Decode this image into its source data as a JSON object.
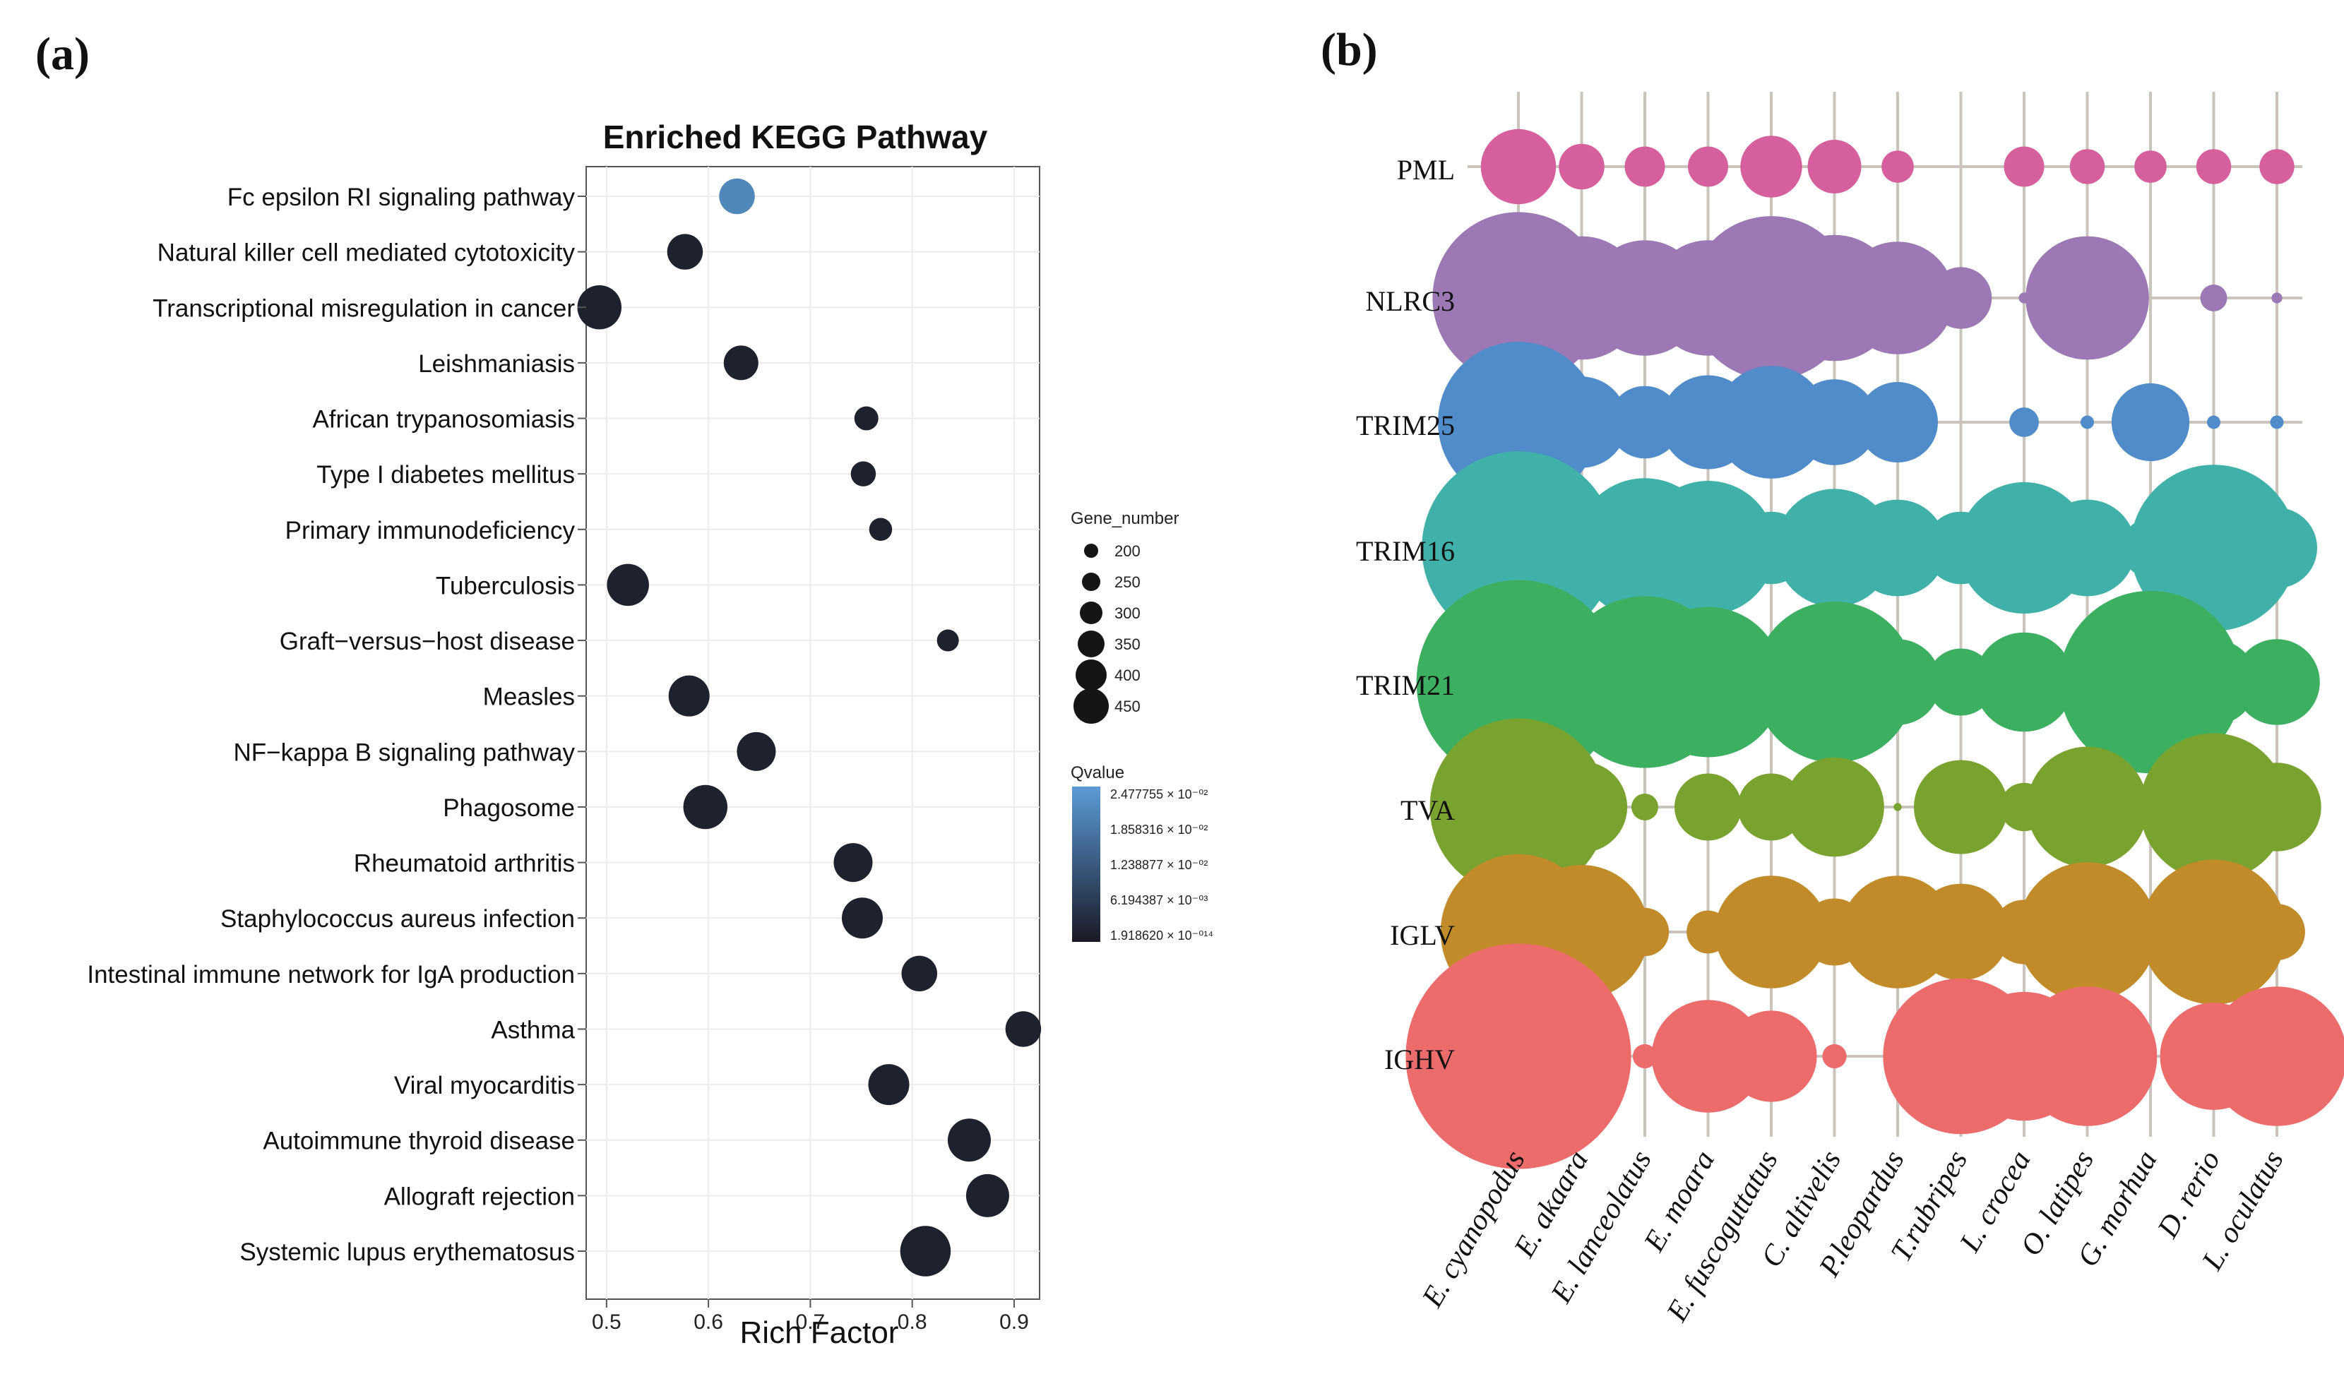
{
  "panel_a": {
    "label": "(a)",
    "chart_data": {
      "type": "scatter",
      "title": "Enriched KEGG Pathway",
      "xlabel": "Rich Factor",
      "ylabel": "",
      "xlim": [
        0.48,
        0.925
      ],
      "xticks": [
        0.5,
        0.6,
        0.7,
        0.8,
        0.9
      ],
      "xtick_labels": [
        "0.5",
        "0.6",
        "0.7",
        "0.8",
        "0.9"
      ],
      "categories": [
        "Fc epsilon RI signaling pathway",
        "Natural killer cell mediated cytotoxicity",
        "Transcriptional misregulation in cancer",
        "Leishmaniasis",
        "African trypanosomiasis",
        "Type I diabetes mellitus",
        "Primary immunodeficiency",
        "Tuberculosis",
        "Graft−versus−host disease",
        "Measles",
        "NF−kappa B signaling pathway",
        "Phagosome",
        "Rheumatoid arthritis",
        "Staphylococcus aureus infection",
        "Intestinal immune network for IgA production",
        "Asthma",
        "Viral myocarditis",
        "Autoimmune thyroid disease",
        "Allograft rejection",
        "Systemic lupus erythematosus"
      ],
      "rich_factor": [
        0.628,
        0.577,
        0.493,
        0.632,
        0.755,
        0.752,
        0.769,
        0.521,
        0.835,
        0.581,
        0.647,
        0.597,
        0.742,
        0.751,
        0.807,
        0.909,
        0.777,
        0.856,
        0.874,
        0.813
      ],
      "gene_number": [
        300,
        300,
        380,
        290,
        190,
        200,
        180,
        360,
        170,
        350,
        330,
        380,
        330,
        350,
        300,
        300,
        350,
        370,
        370,
        440
      ],
      "qvalue_relative": [
        1.0,
        0.05,
        0.05,
        0.05,
        0.05,
        0.05,
        0.05,
        0.05,
        0.05,
        0.05,
        0.05,
        0.05,
        0.05,
        0.05,
        0.05,
        0.05,
        0.05,
        0.05,
        0.05,
        0.05
      ],
      "grid": true,
      "legend_size": {
        "title": "Gene_number",
        "values": [
          200,
          250,
          300,
          350,
          400,
          450
        ],
        "labels": [
          "200",
          "250",
          "300",
          "350",
          "400",
          "450"
        ]
      },
      "legend_color": {
        "title": "Qvalue",
        "labels": [
          "2.477755 × 10⁻⁰²",
          "1.858316 × 10⁻⁰²",
          "1.238877 × 10⁻⁰²",
          "6.194387 × 10⁻⁰³",
          "1.918620 × 10⁻⁰¹⁴"
        ],
        "color_high": "#5b9bd5",
        "color_low": "#1a1a24"
      },
      "legend_placement": "right"
    }
  },
  "panel_b": {
    "label": "(b)",
    "chart_data": {
      "type": "scatter",
      "title": "",
      "xlabel": "",
      "ylabel": "",
      "x": [
        "E. cyanopodus",
        "E. akaara",
        "E. lanceolatus",
        "E. moara",
        "E. fuscoguttatus",
        "C. altivelis",
        "P.leopardus",
        "T.rubripes",
        "L. crocea",
        "O. latipes",
        "G. morhua",
        "D. rerio",
        "L. oculatus"
      ],
      "series": [
        {
          "name": "PML",
          "color": "#d6609e",
          "values": [
            1.4,
            0.85,
            0.75,
            0.75,
            1.15,
            1.0,
            0.6,
            0,
            0.75,
            0.65,
            0.6,
            0.65,
            0.65
          ]
        },
        {
          "name": "NLRC3",
          "color": "#9c78b4",
          "values": [
            3.2,
            2.3,
            2.15,
            2.15,
            3.05,
            2.35,
            2.1,
            1.15,
            0.2,
            2.3,
            0,
            0.5,
            0.2
          ]
        },
        {
          "name": "TRIM25",
          "color": "#4f8cc9",
          "values": [
            3.0,
            1.7,
            1.35,
            1.75,
            2.1,
            1.6,
            1.5,
            0,
            0.55,
            0.25,
            1.45,
            0.25,
            0.25
          ]
        },
        {
          "name": "TRIM16",
          "color": "#3fb1a8",
          "values": [
            3.6,
            1.6,
            2.6,
            2.5,
            1.35,
            2.2,
            1.8,
            1.35,
            2.45,
            1.8,
            1.1,
            3.1,
            1.5
          ]
        },
        {
          "name": "TRIM21",
          "color": "#3daf60",
          "values": [
            3.8,
            1.7,
            3.2,
            2.8,
            1.2,
            3.0,
            1.6,
            1.25,
            1.85,
            1.35,
            3.4,
            1.6,
            1.6
          ]
        },
        {
          "name": "TVA",
          "color": "#79a22e",
          "values": [
            3.3,
            1.7,
            0.5,
            1.25,
            1.25,
            1.85,
            0.15,
            1.75,
            0.9,
            2.25,
            0.5,
            2.75,
            1.65
          ]
        },
        {
          "name": "IGLV",
          "color": "#c18b2a",
          "values": [
            2.9,
            2.5,
            0.9,
            0.8,
            2.1,
            1.25,
            2.1,
            1.8,
            1.2,
            2.6,
            0.5,
            2.7,
            1.05
          ]
        },
        {
          "name": "IGHV",
          "color": "#ec6b6b",
          "values": [
            4.2,
            1.55,
            0.45,
            2.1,
            1.7,
            0.45,
            0.45,
            2.9,
            2.4,
            2.6,
            0.1,
            2.0,
            2.6
          ]
        }
      ],
      "grid": true
    }
  }
}
